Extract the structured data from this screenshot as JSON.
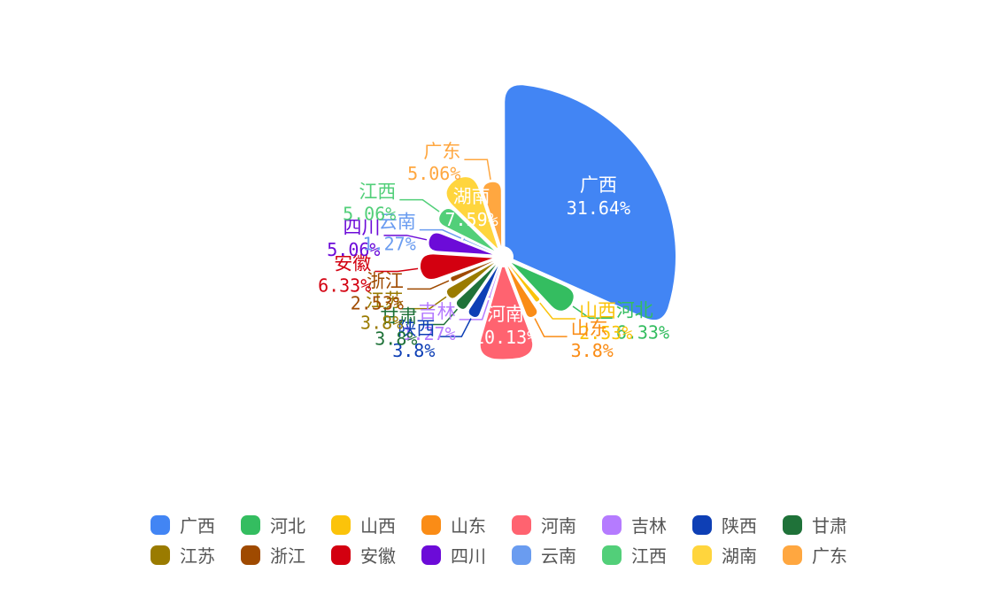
{
  "chart_data": {
    "type": "pie",
    "variant": "rose",
    "title": "",
    "legend_position": "bottom",
    "categories": [
      "广西",
      "河北",
      "山西",
      "山东",
      "河南",
      "吉林",
      "陕西",
      "甘肃",
      "江苏",
      "浙江",
      "安徽",
      "四川",
      "云南",
      "江西",
      "湖南",
      "广东"
    ],
    "values": [
      31.64,
      6.33,
      2.53,
      3.8,
      10.13,
      1.27,
      3.8,
      3.8,
      3.8,
      2.53,
      6.33,
      5.06,
      1.27,
      5.06,
      7.59,
      5.06
    ],
    "labels": [
      "31.64%",
      "6.33%",
      "2.53%",
      "3.8%",
      "10.13%",
      "1.27%",
      "3.8%",
      "3.8%",
      "3.8%",
      "2.53%",
      "6.33%",
      "5.06%",
      "1.27%",
      "5.06%",
      "7.59%",
      "5.06%"
    ],
    "colors": [
      "#4285f4",
      "#34bd60",
      "#fbc30a",
      "#fa8c16",
      "#ff6370",
      "#b57bff",
      "#0e3fb5",
      "#1f7239",
      "#9a7b00",
      "#9f4a00",
      "#d30010",
      "#6c0bd8",
      "#6a9cf0",
      "#52cf79",
      "#ffd53d",
      "#ffa740"
    ],
    "inside_label_categories": [
      "广西",
      "河南",
      "湖南"
    ]
  }
}
